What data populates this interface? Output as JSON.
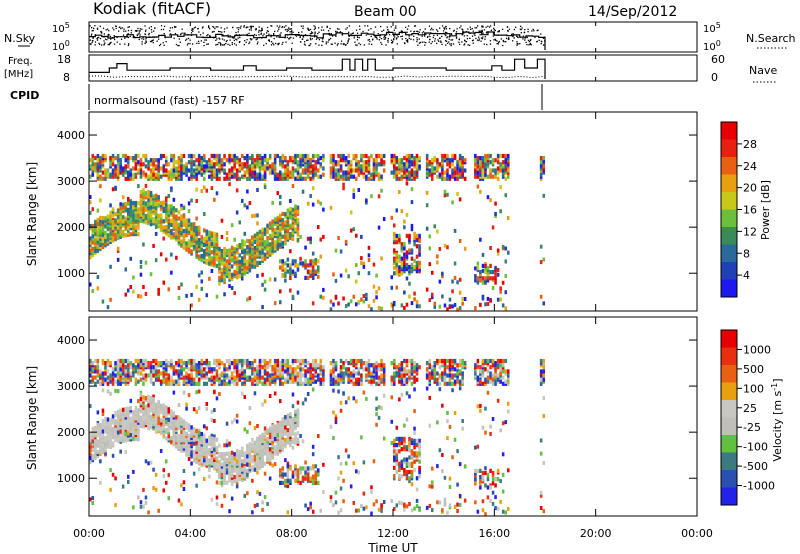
{
  "header": {
    "radar": "Kodiak (fitACF)",
    "beam": "Beam 00",
    "date": "14/Sep/2012"
  },
  "top_panels": {
    "nsky": {
      "label": "N.Sky",
      "ticks": [
        "10^5",
        "10^0"
      ]
    },
    "nsearch": {
      "label": "N.Search",
      "ticks": [
        "10^5",
        "10^0"
      ]
    },
    "freq": {
      "label_line1": "Freq.",
      "label_line2": "[MHz]",
      "ticks": [
        "18",
        "8"
      ]
    },
    "nave": {
      "label": "Nave",
      "ticks": [
        "60",
        "0"
      ]
    },
    "cpid": {
      "label": "CPID",
      "value": "normalsound (fast) -157 RF"
    }
  },
  "colors": {
    "power_scale": [
      "#1a1af0",
      "#2040b8",
      "#2a6a9a",
      "#3a8a5a",
      "#6ac03a",
      "#c8c81a",
      "#e8a010",
      "#e86010",
      "#e82010",
      "#e80000"
    ],
    "velocity_scale": [
      "#2222e8",
      "#2a50b0",
      "#3a7a80",
      "#60c040",
      "#c0c0b8",
      "#c8c8c0",
      "#e8a010",
      "#e86010",
      "#e83010",
      "#e80000"
    ]
  },
  "chart_data": [
    {
      "type": "heatmap",
      "name": "power-panel",
      "xlabel": "",
      "ylabel": "Slant Range [km]",
      "xlim": [
        0,
        24
      ],
      "ylim": [
        180,
        4500
      ],
      "y_ticks": [
        1000,
        2000,
        3000,
        4000
      ],
      "colorbar": {
        "label": "Power [dB]",
        "ticks": [
          4,
          8,
          12,
          16,
          20,
          24,
          28
        ],
        "range": [
          0,
          32
        ]
      },
      "data_windows_ut_hours": [
        [
          0.0,
          2.0
        ],
        [
          2.0,
          6.9
        ],
        [
          6.9,
          9.2
        ],
        [
          9.5,
          11.6
        ],
        [
          11.9,
          13.0
        ],
        [
          13.3,
          14.8
        ],
        [
          15.2,
          16.6
        ],
        [
          17.8,
          18.0
        ]
      ]
    },
    {
      "type": "heatmap",
      "name": "velocity-panel",
      "xlabel": "Time UT",
      "ylabel": "Slant Range [km]",
      "xlim": [
        0,
        24
      ],
      "ylim": [
        180,
        4500
      ],
      "x_ticks": [
        "00:00",
        "04:00",
        "08:00",
        "12:00",
        "16:00",
        "20:00",
        "00:00"
      ],
      "y_ticks": [
        1000,
        2000,
        3000,
        4000
      ],
      "colorbar": {
        "label": "Velocity [m s^-1]",
        "ticks": [
          1000,
          500,
          100,
          25,
          -25,
          -100,
          -500,
          -1000
        ]
      }
    }
  ]
}
